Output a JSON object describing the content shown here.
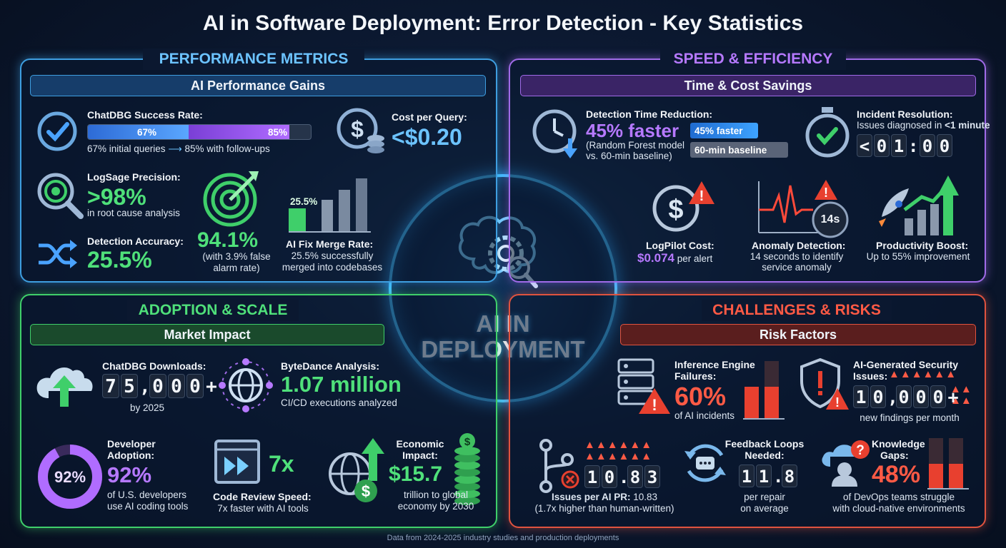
{
  "title": "AI in Software Deployment: Error Detection - Key Statistics",
  "footer": "Data from 2024-2025 industry studies and production deployments",
  "center": {
    "line1": "AI IN",
    "line2": "DEPLOYMENT"
  },
  "colors": {
    "blue": "#3e9ee0",
    "purple": "#a06be8",
    "green": "#3fcf6a",
    "red": "#e0533f"
  },
  "performance": {
    "heading": "PERFORMANCE METRICS",
    "subheading": "AI Performance Gains",
    "chatdbg": {
      "label": "ChatDBG Success Rate:",
      "bar1": "67%",
      "bar2": "85%",
      "bar1_pct": 67,
      "bar2_pct": 85,
      "note_a": "67% initial queries",
      "note_b": "85% with follow-ups"
    },
    "cost": {
      "label": "Cost per Query:",
      "value": "<$0.20"
    },
    "logsage": {
      "label": "LogSage Precision:",
      "value": ">98%",
      "desc": "in root cause analysis"
    },
    "accuracy_target": {
      "value": "94.1%",
      "desc1": "(with 3.9% false",
      "desc2": "alarm rate)"
    },
    "merge": {
      "bar_label": "25.5%",
      "label": "AI Fix Merge Rate:",
      "desc1": "25.5% successfully",
      "desc2": "merged into codebases"
    },
    "detection": {
      "label": "Detection Accuracy:",
      "value": "25.5%"
    }
  },
  "speed": {
    "heading": "SPEED & EFFICIENCY",
    "subheading": "Time & Cost Savings",
    "reduction": {
      "label": "Detection Time Reduction:",
      "value": "45% faster",
      "desc1": "(Random Forest model",
      "desc2": "vs. 60-min baseline)",
      "bar1": "45% faster",
      "bar2": "60-min baseline"
    },
    "incident": {
      "label": "Incident Resolution:",
      "desc_a": "Issues diagnosed in ",
      "desc_b": "<1 minute",
      "digits": [
        "<",
        "0",
        "1",
        ":",
        "0",
        "0"
      ]
    },
    "logpilot": {
      "label": "LogPilot Cost:",
      "value": "$0.074",
      "unit": " per alert"
    },
    "anomaly": {
      "badge": "14s",
      "label": "Anomaly Detection:",
      "desc1": "14 seconds to identify",
      "desc2": "service anomaly"
    },
    "productivity": {
      "label": "Productivity Boost:",
      "desc": "Up to 55% improvement"
    }
  },
  "adoption": {
    "heading": "ADOPTION & SCALE",
    "subheading": "Market Impact",
    "downloads": {
      "label": "ChatDBG Downloads:",
      "digits": [
        "7",
        "5",
        ",",
        "0",
        "0",
        "0",
        "+"
      ],
      "desc": "by 2025"
    },
    "bytedance": {
      "label": "ByteDance Analysis:",
      "value": "1.07 million",
      "desc": "CI/CD executions analyzed"
    },
    "developer": {
      "ring": "92%",
      "ring_pct": 92,
      "label1": "Developer",
      "label2": "Adoption:",
      "value": "92%",
      "desc1": "of U.S. developers",
      "desc2": "use AI coding tools"
    },
    "review": {
      "value": "7x",
      "label": "Code Review Speed:",
      "desc": "7x faster with AI tools"
    },
    "economic": {
      "label1": "Economic",
      "label2": "Impact:",
      "value": "$15.7",
      "desc1": "trillion to global",
      "desc2": "economy by 2030"
    }
  },
  "challenges": {
    "heading": "CHALLENGES & RISKS",
    "subheading": "Risk Factors",
    "inference": {
      "label1": "Inference Engine",
      "label2": "Failures:",
      "value": "60%",
      "desc": "of AI incidents"
    },
    "security": {
      "label1": "AI-Generated Security",
      "label2": "Issues:",
      "digits": [
        "1",
        "0",
        ",",
        "0",
        "0",
        "0",
        "+"
      ],
      "desc": "new findings per month"
    },
    "issues_pr": {
      "digits": [
        "1",
        "0",
        ".",
        "8",
        "3"
      ],
      "label": "Issues per AI PR:",
      "label_value": " 10.83",
      "desc": "(1.7x higher than human-written)"
    },
    "feedback": {
      "label1": "Feedback Loops",
      "label2": "Needed:",
      "digits": [
        "1",
        "1",
        ".",
        "8"
      ],
      "desc1": "per repair",
      "desc2": "on average"
    },
    "knowledge": {
      "label1": "Knowledge",
      "label2": "Gaps:",
      "value": "48%",
      "desc1": "of DevOps teams struggle",
      "desc2": "with cloud-native environments"
    }
  }
}
